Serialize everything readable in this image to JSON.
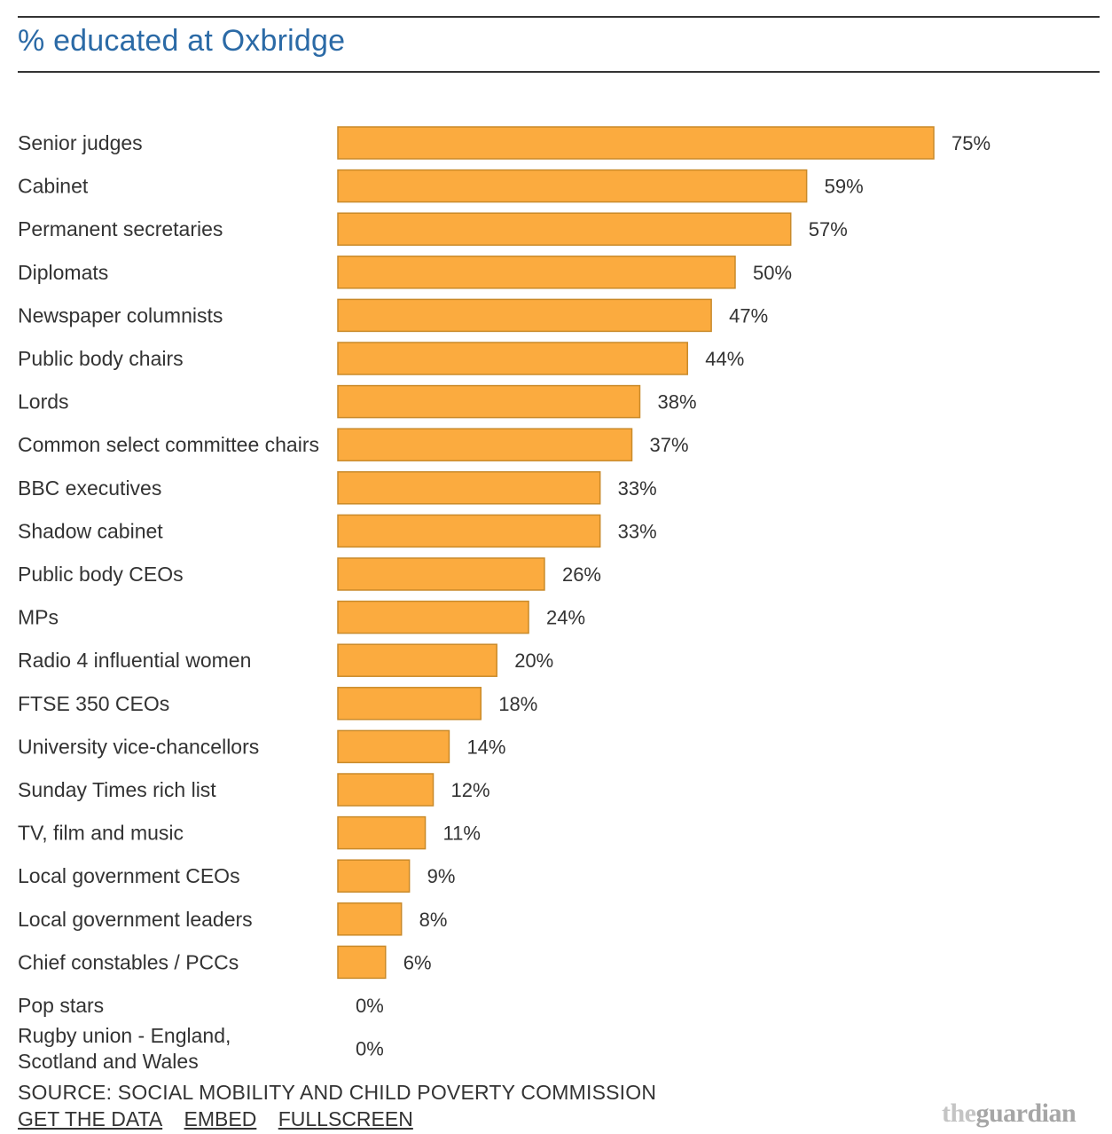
{
  "chart_data": {
    "type": "bar",
    "orientation": "horizontal",
    "title": "% educated at Oxbridge",
    "categories": [
      "Senior judges",
      "Cabinet",
      "Permanent secretaries",
      "Diplomats",
      "Newspaper columnists",
      "Public body chairs",
      "Lords",
      "Common select committee chairs",
      "BBC executives",
      "Shadow cabinet",
      "Public body CEOs",
      "MPs",
      "Radio 4 influential women",
      "FTSE 350 CEOs",
      "University vice-chancellors",
      "Sunday Times rich list",
      "TV, film and music",
      "Local government CEOs",
      "Local government leaders",
      "Chief constables / PCCs",
      "Pop stars",
      "Rugby union - England, Scotland and Wales"
    ],
    "values": [
      75,
      59,
      57,
      50,
      47,
      44,
      38,
      37,
      33,
      33,
      26,
      24,
      20,
      18,
      14,
      12,
      11,
      9,
      8,
      6,
      0,
      0
    ],
    "value_labels": [
      "75%",
      "59%",
      "57%",
      "50%",
      "47%",
      "44%",
      "38%",
      "37%",
      "33%",
      "33%",
      "26%",
      "24%",
      "20%",
      "18%",
      "14%",
      "12%",
      "11%",
      "9%",
      "8%",
      "6%",
      "0%",
      "0%"
    ],
    "xlim": [
      0,
      75
    ],
    "bar_color": "#fbab3f",
    "grid": false,
    "legend": "none"
  },
  "footer": {
    "source": "SOURCE: SOCIAL MOBILITY AND CHILD POVERTY COMMISSION",
    "links": [
      "GET THE DATA",
      "EMBED",
      "FULLSCREEN"
    ],
    "logo_the": "the",
    "logo_guardian": "guardian"
  },
  "colors": {
    "title": "#2b6aa6",
    "text": "#333333",
    "bar": "#fbab3f"
  }
}
